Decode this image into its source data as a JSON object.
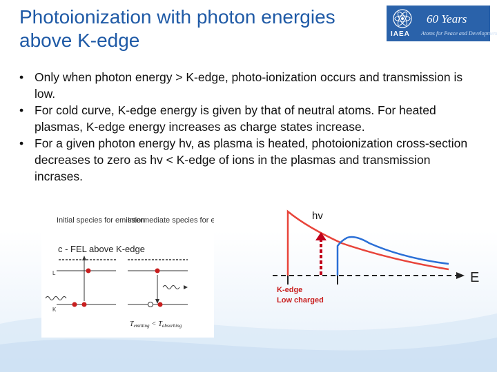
{
  "title": "Photoionization with photon energies above K-edge",
  "logo": {
    "org": "IAEA",
    "years": "60 Years",
    "tagline": "Atoms for Peace and Development"
  },
  "bullets": [
    "Only when photon energy > K-edge, photo-ionization occurs and transmission is low.",
    "For cold curve, K-edge energy is given by that of neutral atoms. For heated plasmas, K-edge energy increases as charge states increase.",
    "For a given photon energy  hv, as plasma is heated, photoionization cross-section decreases to zero as hv < K-edge of ions in the plasmas and transmission incrases."
  ],
  "left_figure": {
    "col1_heading": "Initial species for emission",
    "col2_heading": "Intermediate species for emission",
    "fel_label": "c - FEL above K-edge",
    "level_L": "L",
    "level_K": "K",
    "temp_relation_left": "T",
    "temp_sub_left": "emitting",
    "temp_lt": "<",
    "temp_relation_right": "T",
    "temp_sub_right": "absorbing"
  },
  "right_figure": {
    "photon_label": "hv",
    "axis_label": "E",
    "kedge_label": "K-edge",
    "low_charged_label": "Low charged",
    "colors": {
      "red": "#e8443a",
      "blue": "#2a6fd6",
      "arrow": "#c0001a"
    }
  }
}
